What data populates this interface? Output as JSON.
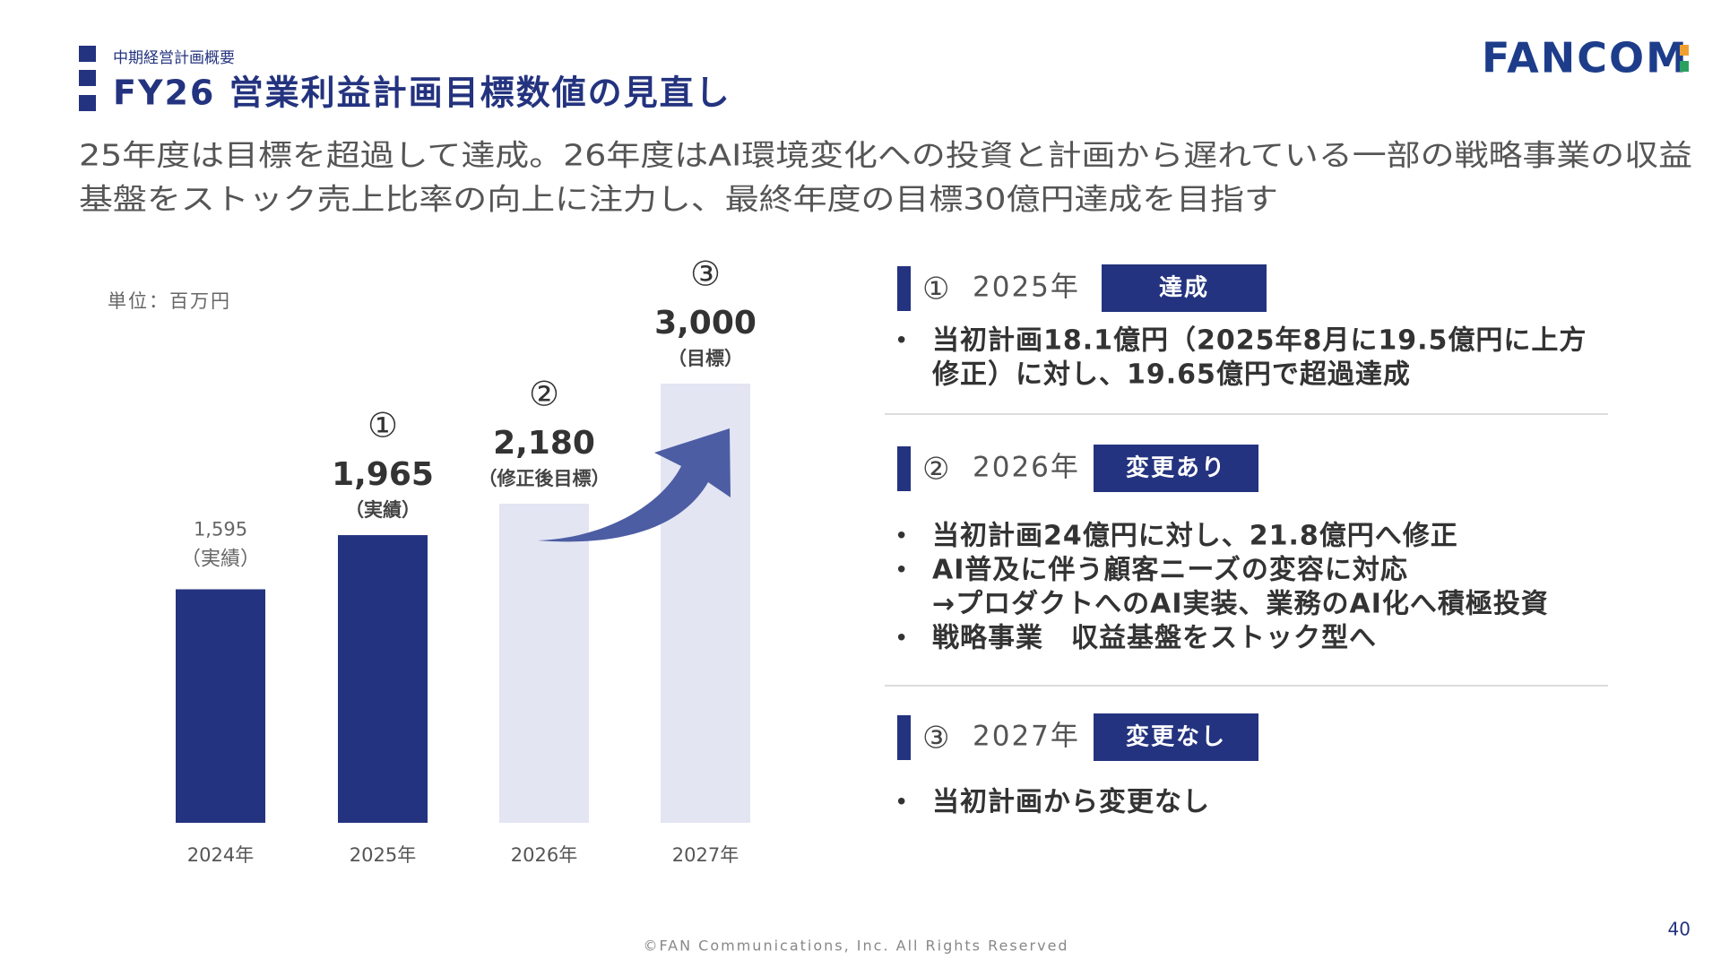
{
  "header": {
    "section": "中期経営計画概要",
    "title": "FY26 営業利益計画目標数値の見直し",
    "logo": "FANCOM"
  },
  "lead": [
    "25年度は目標を超過して達成。26年度はAI環境変化への投資と計画から遅れている一部の戦略事業の収益",
    "基盤をストック売上比率の向上に注力し、最終年度の目標30億円達成を目指す"
  ],
  "chart_data": {
    "type": "bar",
    "unit_label": "単位：百万円",
    "categories": [
      "2024年",
      "2025年",
      "2026年",
      "2027年"
    ],
    "values": [
      1595,
      1965,
      2180,
      3000
    ],
    "value_labels": [
      "1,595",
      "1,965",
      "2,180",
      "3,000"
    ],
    "notes": [
      "（実績）",
      "（実績）",
      "（修正後目標）",
      "（目標）"
    ],
    "markers": [
      null,
      "①",
      "②",
      "③"
    ],
    "colors": [
      "#24337f",
      "#24337f",
      "#e3e5f3",
      "#e3e5f3"
    ]
  },
  "sections": [
    {
      "marker": "①",
      "year": "2025年",
      "badge": "達成",
      "bullets": [
        [
          "当初計画18.1億円（2025年8月に19.5億円に上方",
          "修正）に対し、19.65億円で超過達成"
        ]
      ]
    },
    {
      "marker": "②",
      "year": "2026年",
      "badge": "変更あり",
      "bullets": [
        [
          "当初計画24億円に対し、21.8億円へ修正"
        ],
        [
          "AI普及に伴う顧客ニーズの変容に対応",
          "→プロダクトへのAI実装、業務のAI化へ積極投資"
        ],
        [
          "戦略事業　収益基盤をストック型へ"
        ]
      ]
    },
    {
      "marker": "③",
      "year": "2027年",
      "badge": "変更なし",
      "bullets": [
        [
          "当初計画から変更なし"
        ]
      ]
    }
  ],
  "footer": {
    "copyright": "©FAN Communications, Inc. All Rights Reserved",
    "page": "40"
  }
}
